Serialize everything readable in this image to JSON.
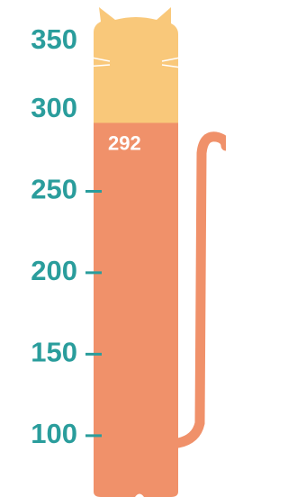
{
  "chart_data": {
    "type": "bar",
    "values": [
      292
    ],
    "color": "#f0916a",
    "head_color": "#f9c87a",
    "axis_color": "#2a9d9c",
    "ylim": [
      69,
      358
    ],
    "yticks": [
      100,
      150,
      200,
      250,
      300,
      350
    ]
  }
}
